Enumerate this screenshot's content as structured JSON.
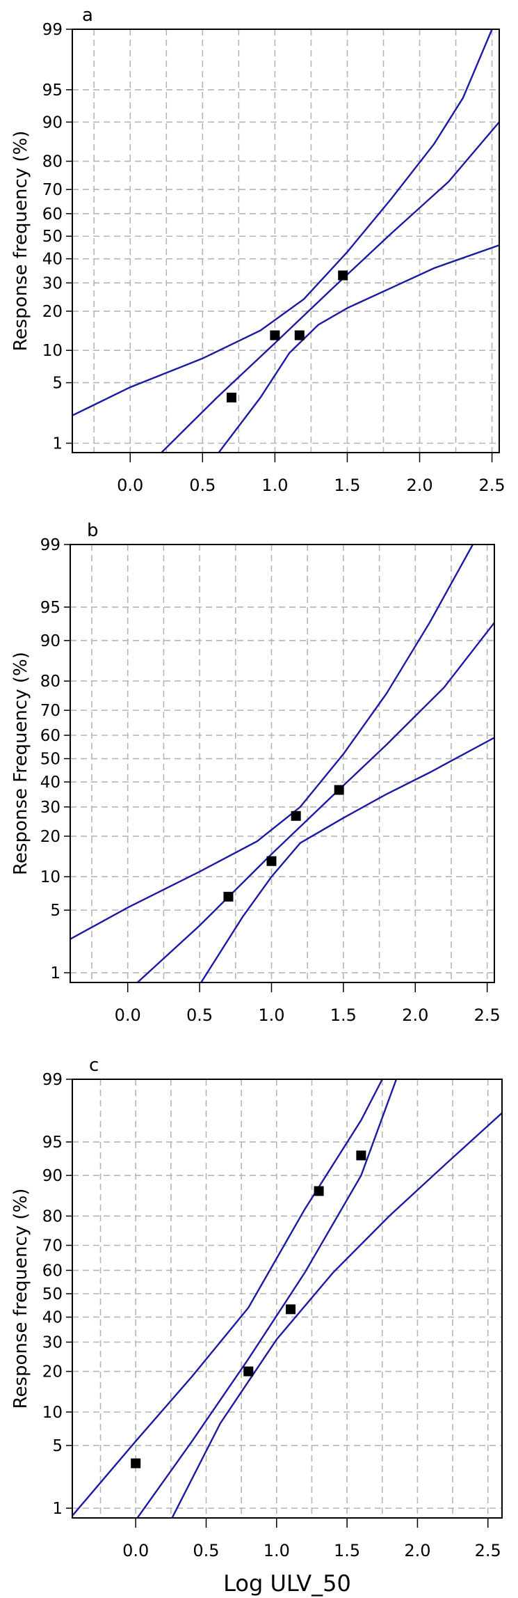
{
  "chart_data": [
    {
      "type": "scatter",
      "panel_label": "a",
      "title": "",
      "xlabel": "",
      "ylabel": "Response frequency (%)",
      "scale": "probit",
      "xlim": [
        -0.4,
        2.55
      ],
      "ylim": [
        0.75,
        99
      ],
      "grid": true,
      "x_ticks": [
        "0.0",
        "0.5",
        "1.0",
        "1.5",
        "2.0",
        "2.5"
      ],
      "y_ticks": [
        "1",
        "5",
        "10",
        "20",
        "30",
        "40",
        "50",
        "60",
        "70",
        "80",
        "90",
        "95",
        "99"
      ],
      "points": [
        {
          "x": 0.7,
          "y": 3.5
        },
        {
          "x": 1.0,
          "y": 13.3
        },
        {
          "x": 1.17,
          "y": 13.3
        },
        {
          "x": 1.47,
          "y": 33
        }
      ],
      "series": [
        {
          "role": "fitted",
          "x": [
            0.2,
            0.6,
            1.0,
            1.4,
            1.8,
            2.2,
            2.55
          ],
          "y": [
            0.7,
            3.5,
            11.5,
            28,
            51,
            73,
            90
          ]
        },
        {
          "role": "upper",
          "x": [
            -0.4,
            0.0,
            0.5,
            0.9,
            1.2,
            1.5,
            1.8,
            2.1,
            2.3,
            2.5
          ],
          "y": [
            2.2,
            4.5,
            8.5,
            14.5,
            24,
            43,
            66,
            85,
            94,
            99
          ]
        },
        {
          "role": "lower",
          "x": [
            0.6,
            0.9,
            1.1,
            1.3,
            1.5,
            1.8,
            2.1,
            2.55
          ],
          "y": [
            0.7,
            3.5,
            9.5,
            16,
            21,
            28,
            36,
            46
          ]
        }
      ]
    },
    {
      "type": "scatter",
      "panel_label": "b",
      "title": "",
      "xlabel": "",
      "ylabel": "Response Frequency (%)",
      "scale": "probit",
      "xlim": [
        -0.4,
        2.55
      ],
      "ylim": [
        0.75,
        99
      ],
      "grid": true,
      "x_ticks": [
        "0.0",
        "0.5",
        "1.0",
        "1.5",
        "2.0",
        "2.5"
      ],
      "y_ticks": [
        "1",
        "5",
        "10",
        "20",
        "30",
        "40",
        "50",
        "60",
        "70",
        "80",
        "90",
        "95",
        "99"
      ],
      "points": [
        {
          "x": 0.7,
          "y": 6.7
        },
        {
          "x": 1.0,
          "y": 13.3
        },
        {
          "x": 1.17,
          "y": 26.7
        },
        {
          "x": 1.47,
          "y": 36.7
        }
      ],
      "series": [
        {
          "role": "fitted",
          "x": [
            0.05,
            0.5,
            1.0,
            1.4,
            1.8,
            2.2,
            2.55
          ],
          "y": [
            0.7,
            3.5,
            15,
            33,
            56,
            78,
            93
          ]
        },
        {
          "role": "upper",
          "x": [
            -0.4,
            0.0,
            0.5,
            0.9,
            1.2,
            1.5,
            1.8,
            2.1,
            2.4
          ],
          "y": [
            2.5,
            5.3,
            11,
            18.5,
            30,
            52,
            76,
            93,
            99
          ]
        },
        {
          "role": "lower",
          "x": [
            0.5,
            0.8,
            1.0,
            1.2,
            1.5,
            1.8,
            2.1,
            2.55
          ],
          "y": [
            0.7,
            4.3,
            10,
            18,
            26,
            35,
            44,
            59
          ]
        }
      ]
    },
    {
      "type": "scatter",
      "panel_label": "c",
      "title": "",
      "xlabel": "Log ULV_50",
      "ylabel": "Response frequency (%)",
      "scale": "probit",
      "xlim": [
        -0.45,
        2.6
      ],
      "ylim": [
        0.75,
        99
      ],
      "grid": true,
      "x_ticks": [
        "0.0",
        "0.5",
        "1.0",
        "1.5",
        "2.0",
        "2.5"
      ],
      "y_ticks": [
        "1",
        "5",
        "10",
        "20",
        "30",
        "40",
        "50",
        "60",
        "70",
        "80",
        "90",
        "95",
        "99"
      ],
      "points": [
        {
          "x": 0.0,
          "y": 3.3
        },
        {
          "x": 0.8,
          "y": 20
        },
        {
          "x": 1.1,
          "y": 43.3
        },
        {
          "x": 1.3,
          "y": 86.7
        },
        {
          "x": 1.6,
          "y": 93.3
        }
      ],
      "series": [
        {
          "role": "fitted",
          "x": [
            0.0,
            0.4,
            0.8,
            1.2,
            1.6,
            1.85
          ],
          "y": [
            0.7,
            5.5,
            24,
            59,
            90,
            99
          ]
        },
        {
          "role": "upper",
          "x": [
            -0.45,
            0.0,
            0.4,
            0.8,
            1.2,
            1.6,
            1.75
          ],
          "y": [
            0.8,
            5.5,
            18.5,
            44,
            82,
            97,
            99
          ]
        },
        {
          "role": "lower",
          "x": [
            0.25,
            0.6,
            1.0,
            1.4,
            1.8,
            2.2,
            2.6
          ],
          "y": [
            0.7,
            8,
            31,
            59,
            80,
            92,
            97.5
          ]
        }
      ]
    }
  ]
}
